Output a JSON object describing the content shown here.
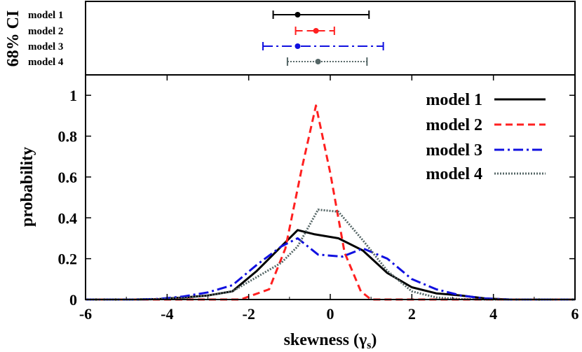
{
  "chart_data": [
    {
      "type": "errorbar",
      "ylabel": "68% CI",
      "xlim": [
        -6,
        6
      ],
      "series": [
        {
          "name": "model 1",
          "center": -0.8,
          "lower": -1.4,
          "upper": 0.95,
          "color": "#000000",
          "dash": "solid"
        },
        {
          "name": "model 2",
          "center": -0.35,
          "lower": -0.85,
          "upper": 0.1,
          "color": "#ff2020",
          "dash": "dashed"
        },
        {
          "name": "model 3",
          "center": -0.8,
          "lower": -1.65,
          "upper": 1.3,
          "color": "#1010e0",
          "dash": "dashdot"
        },
        {
          "name": "model 4",
          "center": -0.3,
          "lower": -1.05,
          "upper": 0.9,
          "color": "#556666",
          "dash": "dotted"
        }
      ]
    },
    {
      "type": "line",
      "xlabel": "skewness (γ",
      "xlabel_sub": "s",
      "xlabel_close": ")",
      "ylabel": "probability",
      "xlim": [
        -6,
        6
      ],
      "ylim": [
        0,
        1.1
      ],
      "xticks": [
        -6,
        -4,
        -2,
        0,
        2,
        4,
        6
      ],
      "yticks": [
        0,
        0.2,
        0.4,
        0.6,
        0.8,
        1
      ],
      "xtick_labels": [
        "-6",
        "-4",
        "-2",
        "0",
        "2",
        "4",
        "6"
      ],
      "ytick_labels": [
        "0",
        "0.2",
        "0.4",
        "0.6",
        "0.8",
        "1"
      ],
      "legend": "top-right",
      "series": [
        {
          "name": "model 1",
          "color": "#000000",
          "dash": "solid",
          "x": [
            -6,
            -4.8,
            -4.2,
            -3.6,
            -3.0,
            -2.4,
            -1.8,
            -1.2,
            -0.8,
            -0.4,
            0.2,
            0.8,
            1.4,
            2.0,
            2.6,
            3.2,
            3.8,
            4.4,
            5.0,
            6
          ],
          "y": [
            0,
            0,
            0.002,
            0.01,
            0.02,
            0.04,
            0.14,
            0.26,
            0.34,
            0.32,
            0.3,
            0.24,
            0.13,
            0.06,
            0.03,
            0.02,
            0.005,
            0,
            0,
            0
          ]
        },
        {
          "name": "model 2",
          "color": "#ff2020",
          "dash": "dashed",
          "x": [
            -6,
            -3.0,
            -2.2,
            -1.5,
            -1.1,
            -0.7,
            -0.35,
            0.0,
            0.35,
            0.75,
            1.0,
            2.0,
            6
          ],
          "y": [
            0,
            0,
            0.0,
            0.05,
            0.25,
            0.64,
            0.95,
            0.62,
            0.23,
            0.04,
            0,
            0,
            0
          ]
        },
        {
          "name": "model 3",
          "color": "#1010e0",
          "dash": "dashdot",
          "x": [
            -6,
            -4.8,
            -4.2,
            -3.6,
            -3.0,
            -2.4,
            -1.8,
            -1.2,
            -0.8,
            -0.3,
            0.3,
            0.8,
            1.4,
            2.0,
            2.6,
            3.2,
            3.8,
            4.4,
            6
          ],
          "y": [
            0,
            0,
            0.003,
            0.015,
            0.035,
            0.07,
            0.17,
            0.26,
            0.3,
            0.22,
            0.21,
            0.25,
            0.2,
            0.1,
            0.05,
            0.02,
            0.005,
            0,
            0
          ]
        },
        {
          "name": "model 4",
          "color": "#556666",
          "dash": "dotted",
          "x": [
            -6,
            -4.8,
            -4.2,
            -3.6,
            -3.0,
            -2.4,
            -1.8,
            -1.2,
            -0.8,
            -0.3,
            0.2,
            0.8,
            1.4,
            2.0,
            2.6,
            3.2,
            3.8,
            6
          ],
          "y": [
            0,
            0,
            0.002,
            0.008,
            0.02,
            0.04,
            0.11,
            0.18,
            0.26,
            0.44,
            0.43,
            0.29,
            0.14,
            0.04,
            0.01,
            0.002,
            0,
            0
          ]
        }
      ]
    }
  ]
}
